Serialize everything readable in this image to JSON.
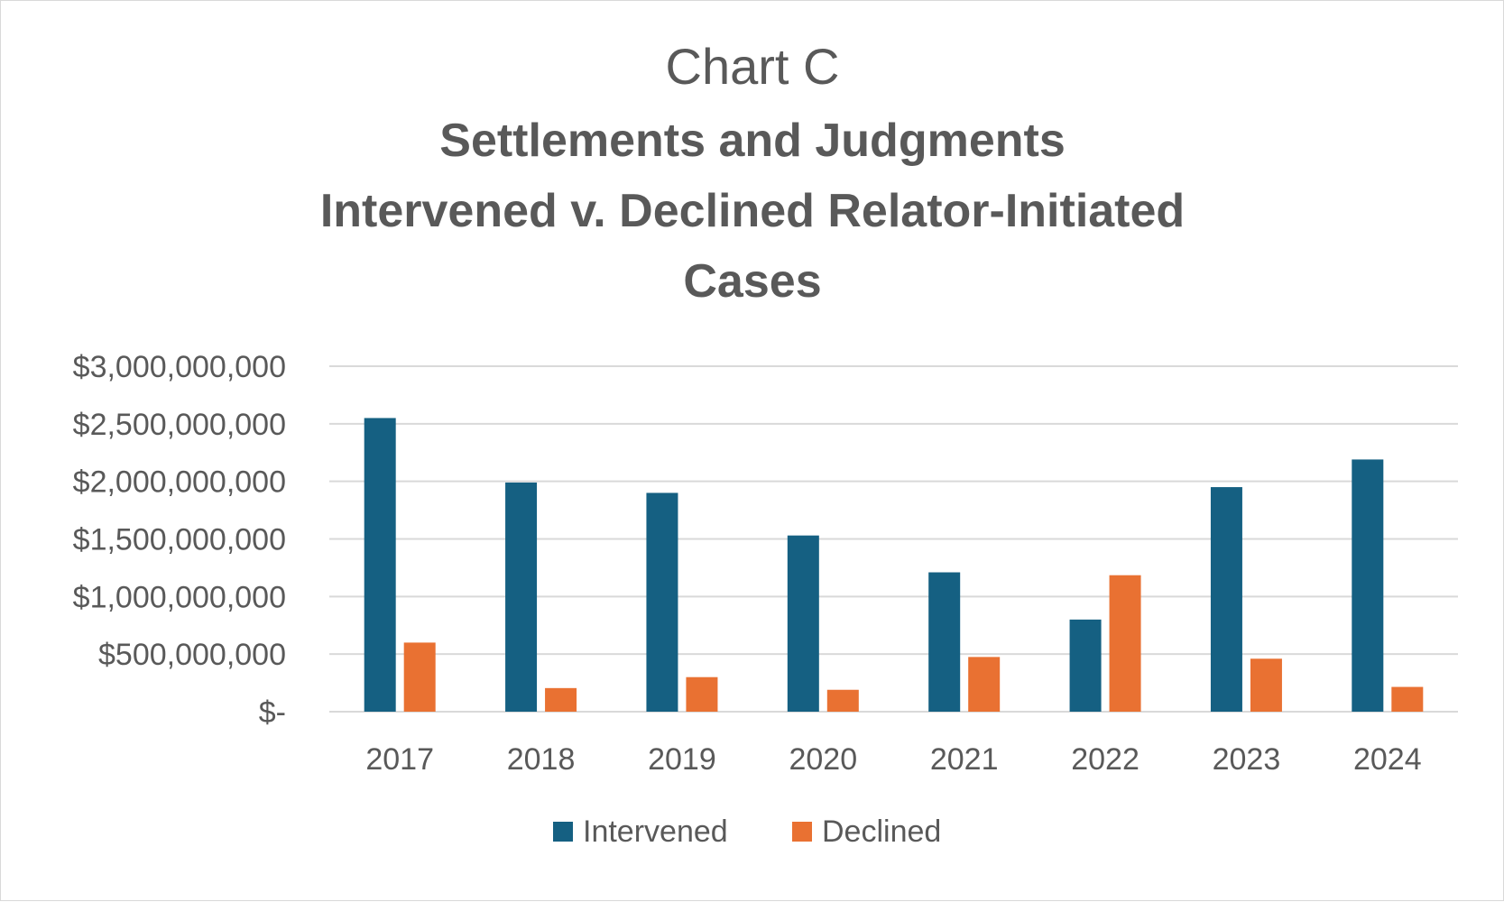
{
  "chart_data": {
    "type": "bar",
    "title_lines": [
      "Chart C",
      "Settlements and Judgments",
      "Intervened v. Declined Relator-Initiated",
      "Cases"
    ],
    "categories": [
      "2017",
      "2018",
      "2019",
      "2020",
      "2021",
      "2022",
      "2023",
      "2024"
    ],
    "series": [
      {
        "name": "Intervened",
        "color": "#156082",
        "values": [
          2550000000,
          1990000000,
          1900000000,
          1530000000,
          1210000000,
          800000000,
          1950000000,
          2190000000
        ]
      },
      {
        "name": "Declined",
        "color": "#e97132",
        "values": [
          600000000,
          205000000,
          300000000,
          190000000,
          475000000,
          1185000000,
          460000000,
          215000000
        ]
      }
    ],
    "ylim": [
      0,
      3000000000
    ],
    "y_ticks": [
      {
        "value": 0,
        "label": "$-"
      },
      {
        "value": 500000000,
        "label": "$500,000,000"
      },
      {
        "value": 1000000000,
        "label": "$1,000,000,000"
      },
      {
        "value": 1500000000,
        "label": "$1,500,000,000"
      },
      {
        "value": 2000000000,
        "label": "$2,000,000,000"
      },
      {
        "value": 2500000000,
        "label": "$2,500,000,000"
      },
      {
        "value": 3000000000,
        "label": "$3,000,000,000"
      }
    ],
    "xlabel": "",
    "ylabel": "",
    "grid": true,
    "legend_position": "bottom",
    "gridline_color": "#d9d9d9",
    "text_color": "#595959"
  }
}
